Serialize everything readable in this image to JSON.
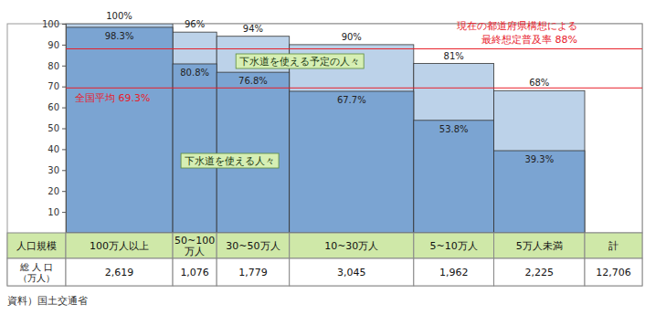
{
  "chart_data": {
    "type": "bar",
    "stacked": false,
    "data_labels": true,
    "categories": [
      "100万人以上",
      "50~100万人",
      "30~50万人",
      "10~30万人",
      "5~10万人",
      "5万人未満"
    ],
    "widths": [
      2619,
      1076,
      1779,
      3045,
      1962,
      2225
    ],
    "width_labels": [
      "2,619",
      "1,076",
      "1,779",
      "3,045",
      "1,962",
      "2,225"
    ],
    "category_title": "人口規模",
    "width_title": [
      "総 人 口",
      "（万人）"
    ],
    "total": {
      "category": "計",
      "width": 12706,
      "width_label": "12,706"
    },
    "series": [
      {
        "name": "下水道を使える人々",
        "color": "#7ba4d2",
        "values": [
          98.3,
          80.8,
          76.8,
          67.7,
          53.8,
          39.3
        ],
        "value_labels": [
          "98.3%",
          "80.8%",
          "76.8%",
          "67.7%",
          "53.8%",
          "39.3%"
        ]
      },
      {
        "name": "下水道を使える予定の人々",
        "color": "#bcd2e9",
        "values": [
          100,
          96,
          94,
          90,
          81,
          68
        ],
        "value_labels": [
          "100%",
          "96%",
          "94%",
          "90%",
          "81%",
          "68%"
        ]
      }
    ],
    "ylim": [
      0,
      100
    ],
    "yticks": [
      10,
      20,
      30,
      40,
      50,
      60,
      70,
      80,
      90,
      100
    ],
    "annotations": [
      {
        "value": 69.3,
        "label": [
          "全国平均 69.3%"
        ],
        "color": "#e8202a"
      },
      {
        "value": 88,
        "label": [
          "現在の都道府県構想による",
          "最終想定普及率 88%"
        ],
        "color": "#e8202a"
      }
    ],
    "source": "資料）国土交通省"
  }
}
